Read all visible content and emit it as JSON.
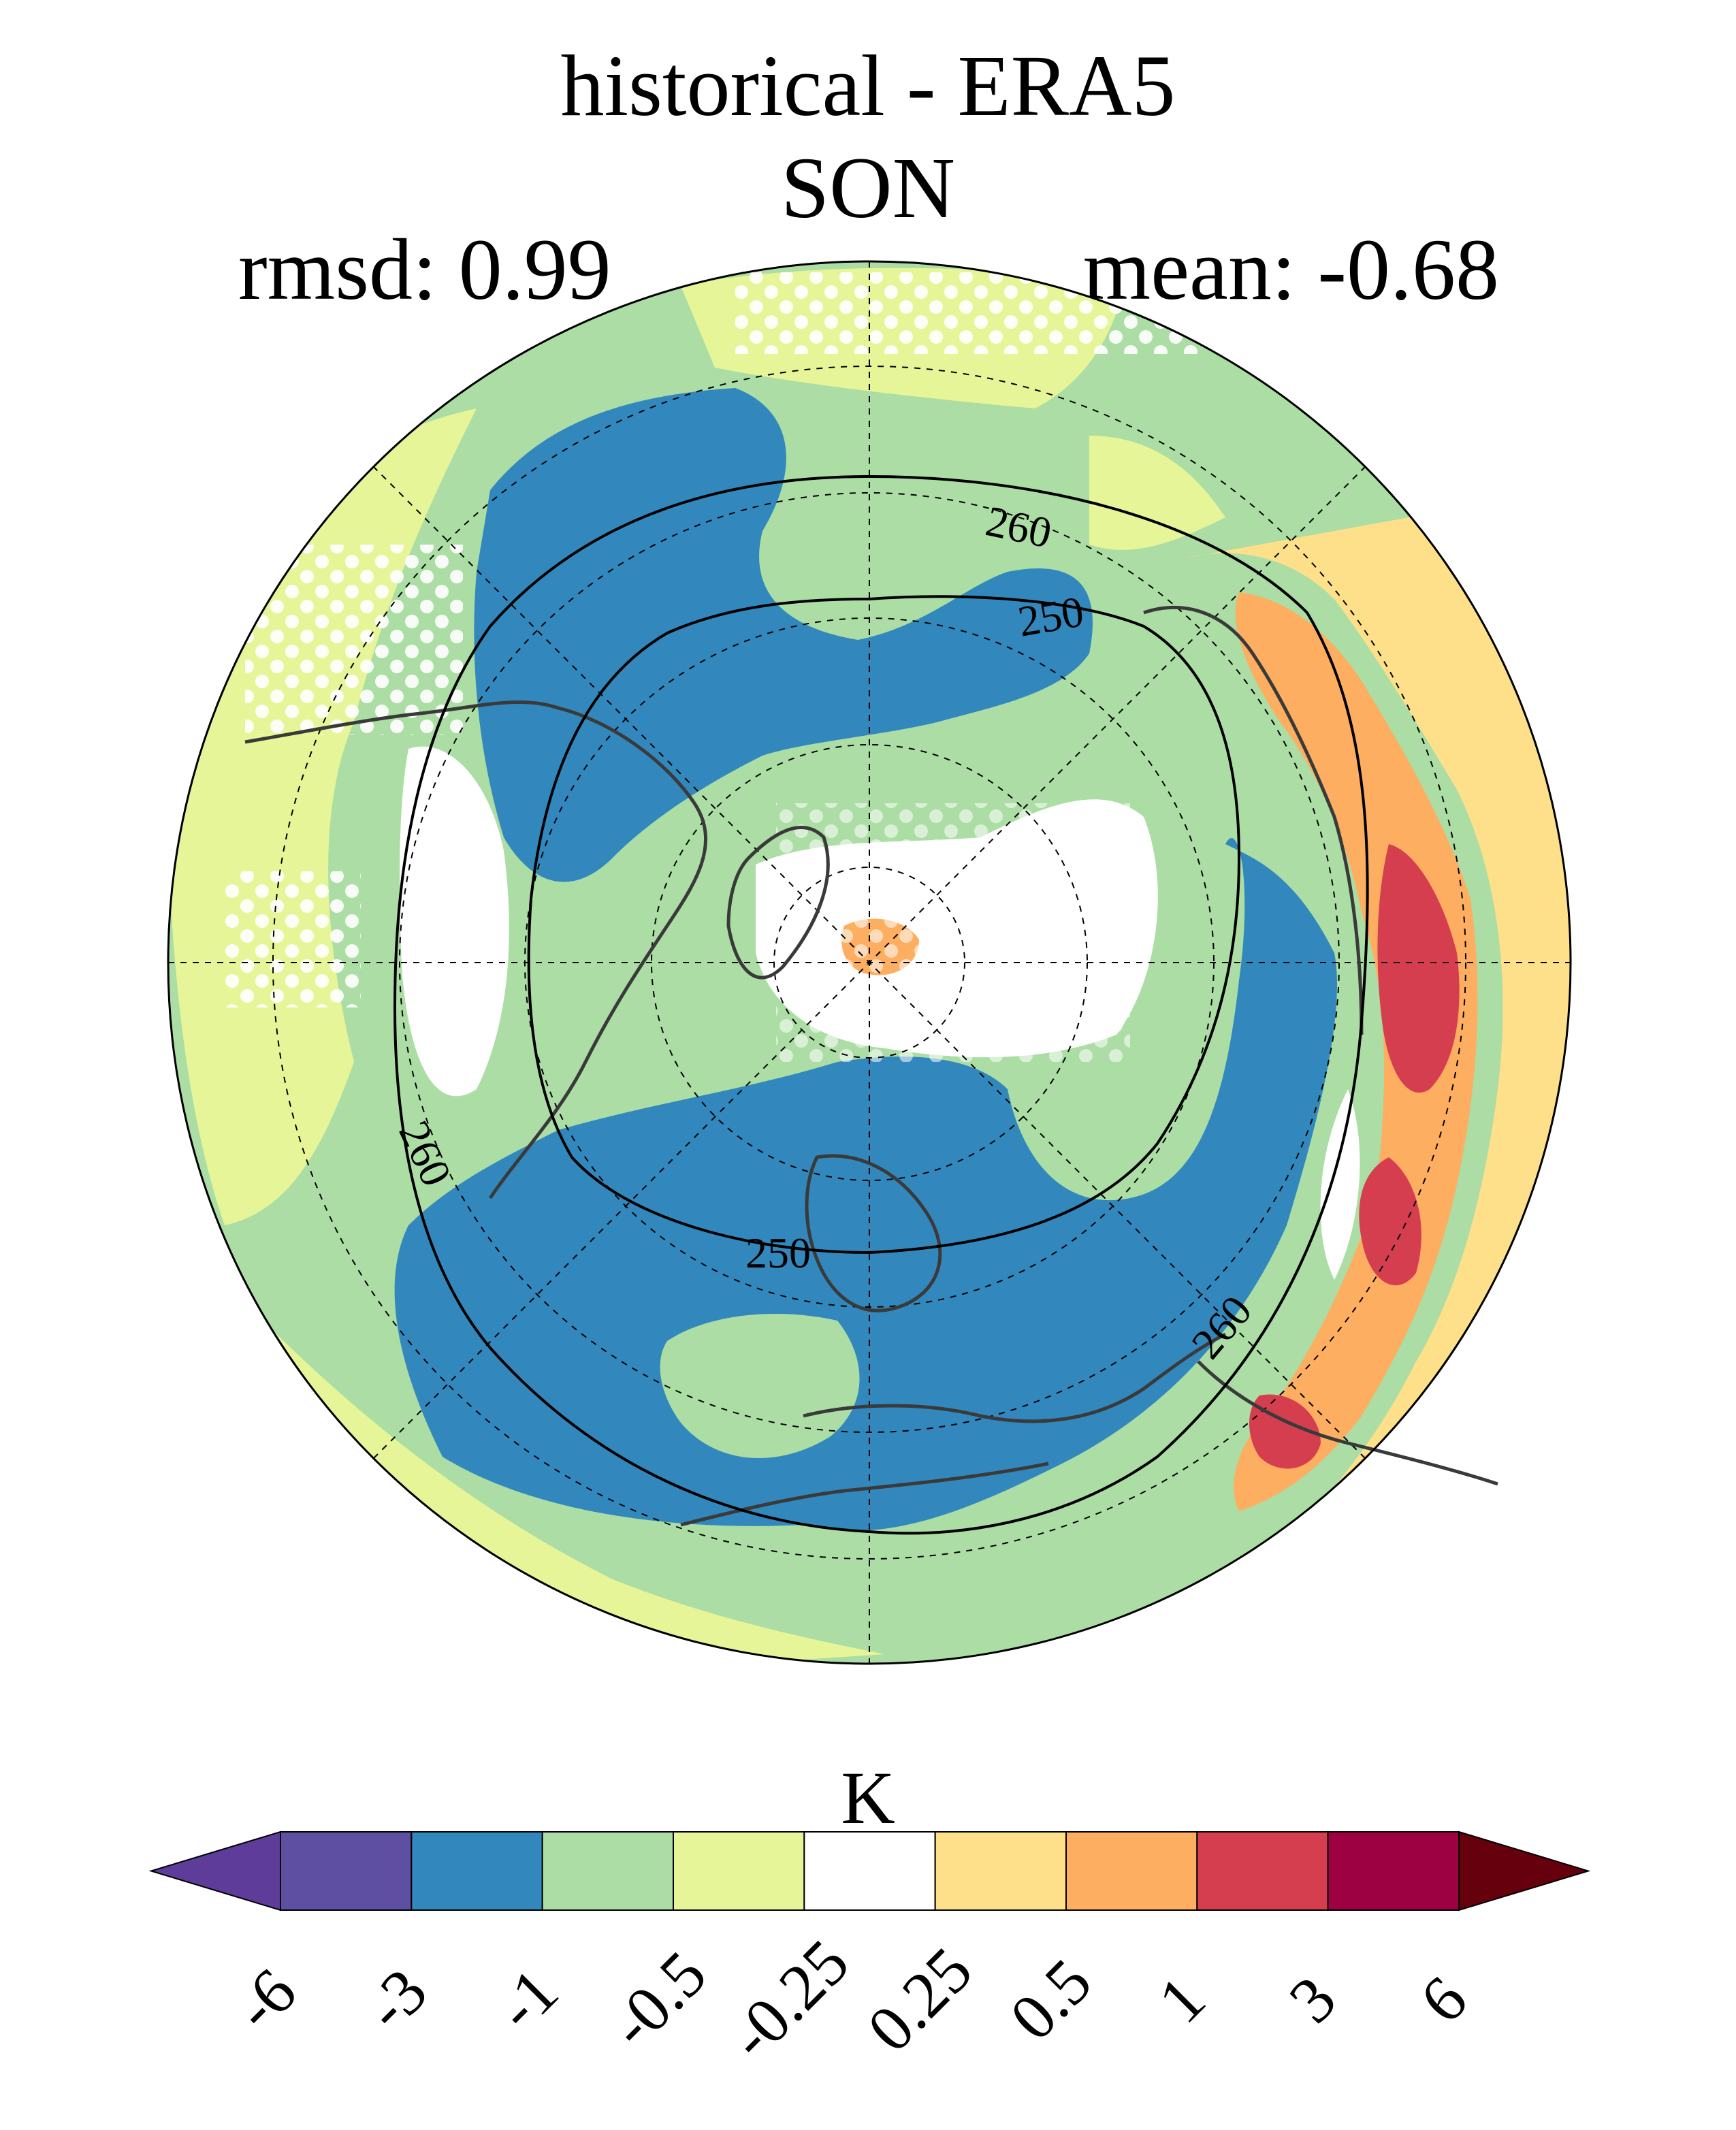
{
  "title": "historical - ERA5",
  "season": "SON",
  "stats": {
    "rmsd": "rmsd: 0.99",
    "mean": "mean: -0.68"
  },
  "contours": [
    {
      "label": "260"
    },
    {
      "label": "250"
    },
    {
      "label": "250"
    },
    {
      "label": "260"
    },
    {
      "label": "260"
    }
  ],
  "colorbar": {
    "unit": "K",
    "ticks": [
      "-6",
      "-3",
      "-1",
      "-0.5",
      "-0.25",
      "0.25",
      "0.5",
      "1",
      "3",
      "6"
    ],
    "colors": [
      "#5e3c99",
      "#5e4fa2",
      "#3288bd",
      "#abdda4",
      "#e6f598",
      "#ffffff",
      "#fee08b",
      "#fdae61",
      "#d53e4f",
      "#9e0142",
      "#67000d"
    ]
  },
  "palette": {
    "deep_blue": "#3288bd",
    "light_green": "#abdda4",
    "pale_yellow": "#e6f598",
    "white": "#ffffff",
    "light_orange": "#fee08b",
    "orange": "#fdae61",
    "red": "#d53e4f"
  }
}
